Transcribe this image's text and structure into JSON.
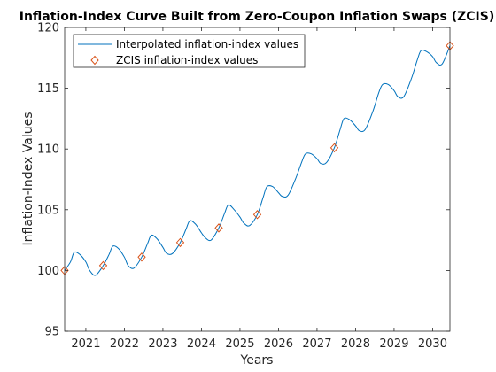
{
  "chart_data": {
    "type": "line",
    "title": "Inflation-Index Curve Built from Zero-Coupon Inflation Swaps (ZCIS)",
    "xlabel": "Years",
    "ylabel": "Inflation-Index Values",
    "xlim": [
      2020.45,
      2030.45
    ],
    "ylim": [
      95,
      120
    ],
    "x_ticks": [
      2021,
      2022,
      2023,
      2024,
      2025,
      2026,
      2027,
      2028,
      2029,
      2030
    ],
    "x_tick_labels": [
      "2021",
      "2022",
      "2023",
      "2024",
      "2025",
      "2026",
      "2027",
      "2028",
      "2029",
      "2030"
    ],
    "y_ticks": [
      95,
      100,
      105,
      110,
      115,
      120
    ],
    "y_tick_labels": [
      "95",
      "100",
      "105",
      "110",
      "115",
      "120"
    ],
    "grid": false,
    "legend_position": "top-left",
    "series": [
      {
        "name": "Interpolated inflation-index values",
        "style": "line",
        "color": "#0072BD",
        "x": [
          2020.45,
          2020.6,
          2020.7,
          2020.85,
          2021.0,
          2021.1,
          2021.25,
          2021.45,
          2021.6,
          2021.7,
          2021.85,
          2022.0,
          2022.1,
          2022.25,
          2022.45,
          2022.6,
          2022.7,
          2022.85,
          2023.0,
          2023.1,
          2023.25,
          2023.45,
          2023.6,
          2023.7,
          2023.85,
          2024.0,
          2024.1,
          2024.25,
          2024.45,
          2024.6,
          2024.7,
          2024.85,
          2025.0,
          2025.1,
          2025.25,
          2025.45,
          2025.6,
          2025.7,
          2025.85,
          2026.0,
          2026.1,
          2026.25,
          2026.45,
          2026.6,
          2026.7,
          2026.85,
          2027.0,
          2027.1,
          2027.25,
          2027.45,
          2027.6,
          2027.7,
          2027.85,
          2028.0,
          2028.1,
          2028.25,
          2028.45,
          2028.6,
          2028.7,
          2028.85,
          2029.0,
          2029.1,
          2029.25,
          2029.45,
          2029.6,
          2029.7,
          2029.85,
          2030.0,
          2030.1,
          2030.25,
          2030.45
        ],
        "y": [
          100.0,
          100.7,
          101.5,
          101.3,
          100.7,
          100.0,
          99.6,
          100.4,
          101.3,
          102.0,
          101.8,
          101.1,
          100.4,
          100.2,
          101.1,
          102.2,
          102.9,
          102.6,
          101.9,
          101.4,
          101.4,
          102.3,
          103.4,
          104.1,
          103.8,
          103.1,
          102.7,
          102.5,
          103.5,
          104.7,
          105.4,
          105.0,
          104.4,
          103.9,
          103.7,
          104.6,
          106.0,
          106.9,
          106.9,
          106.4,
          106.1,
          106.2,
          107.6,
          108.9,
          109.6,
          109.6,
          109.2,
          108.8,
          108.9,
          110.1,
          111.6,
          112.5,
          112.4,
          111.9,
          111.5,
          111.6,
          113.1,
          114.6,
          115.3,
          115.3,
          114.8,
          114.3,
          114.3,
          115.8,
          117.3,
          118.1,
          118.0,
          117.6,
          117.1,
          117.0,
          118.5
        ]
      },
      {
        "name": "ZCIS inflation-index values",
        "style": "markers",
        "marker": "diamond",
        "color": "#D95319",
        "x": [
          2020.45,
          2021.45,
          2022.45,
          2023.45,
          2024.45,
          2025.45,
          2027.45,
          2030.45
        ],
        "y": [
          100.0,
          100.4,
          101.1,
          102.3,
          103.5,
          104.6,
          110.1,
          118.5
        ]
      }
    ]
  }
}
